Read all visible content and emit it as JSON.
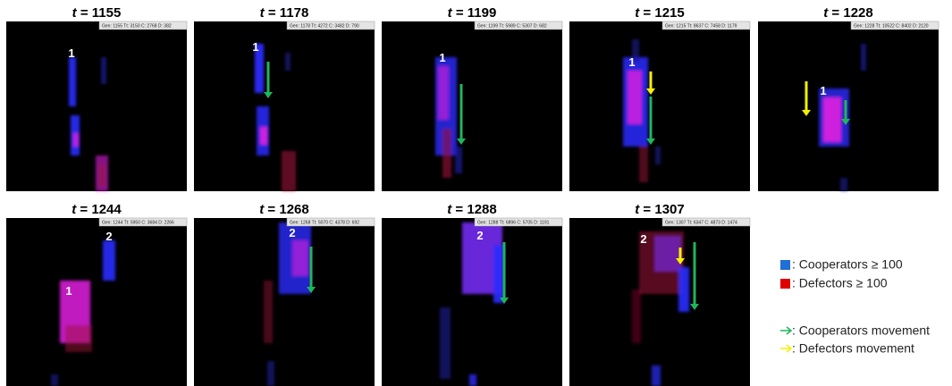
{
  "panels": [
    {
      "var": "t",
      "eq": " = 1155",
      "status": "Gen: 1155  Tt: 3150  C: 2768  D: 382",
      "markers": [
        "1"
      ]
    },
    {
      "var": "t",
      "eq": " = 1178",
      "status": "Gen: 1178  Tt: 4272  C: 3482  D: 790",
      "markers": [
        "1"
      ]
    },
    {
      "var": "t",
      "eq": " = 1199",
      "status": "Gen: 1199  Tt: 5989  C: 5307  D: 682",
      "markers": [
        "1"
      ]
    },
    {
      "var": "t",
      "eq": " = 1215",
      "status": "Gen: 1215  Tt: 8637  C: 7458  D: 1179",
      "markers": [
        "1"
      ]
    },
    {
      "var": "t",
      "eq": " = 1228",
      "status": "Gen: 1228  Tt: 10522  C: 8402  D: 2120",
      "markers": [
        "1"
      ]
    },
    {
      "var": "t",
      "eq": " = 1244",
      "status": "Gen: 1244  Tt: 5950  C: 3684  D: 2266",
      "markers": [
        "2",
        "1"
      ]
    },
    {
      "var": "t",
      "eq": " = 1268",
      "status": "Gen: 1268  Tt: 5070  C: 4378  D: 692",
      "markers": [
        "2"
      ]
    },
    {
      "var": "t",
      "eq": " = 1288",
      "status": "Gen: 1288  Tt: 6896  C: 5705  D: 1191",
      "markers": [
        "2"
      ]
    },
    {
      "var": "t",
      "eq": " = 1307",
      "status": "Gen: 1307  Tt: 6347  C: 4873  D: 1474",
      "markers": [
        "2"
      ]
    }
  ],
  "legend": {
    "cooperators": ": Cooperators ≥ 100",
    "defectors": ": Defectors ≥ 100",
    "coop_move": ": Cooperators movement",
    "def_move": ": Defectors movement"
  }
}
